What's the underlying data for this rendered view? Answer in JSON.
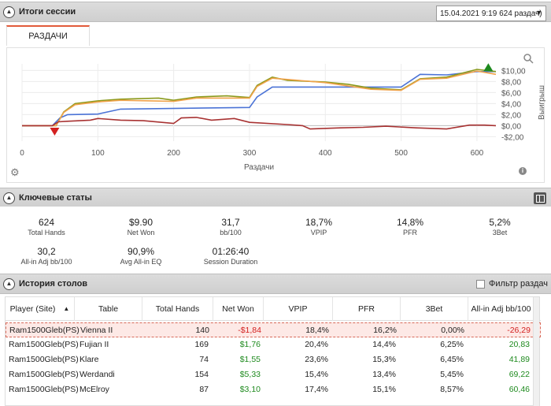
{
  "session": {
    "title": "Итоги сессии",
    "selector_value": "15.04.2021 9:19 624 раздач)",
    "tab_label": "РАЗДАЧИ"
  },
  "chart_data": {
    "type": "line",
    "xlabel": "Раздачи",
    "ylabel": "Выигрыш",
    "xlim": [
      0,
      625
    ],
    "ylim": [
      -2.8,
      11.2
    ],
    "x_ticks": [
      0,
      100,
      200,
      300,
      400,
      500,
      600
    ],
    "y_ticks": [
      -2,
      0,
      2,
      4,
      6,
      8,
      10
    ],
    "y_tick_labels": [
      "-$2,00",
      "$0,00",
      "$2,00",
      "$4,00",
      "$6,00",
      "$8,00",
      "$10,00"
    ],
    "grid": true,
    "markers": [
      {
        "type": "min",
        "x": 43,
        "y": -0.8,
        "color": "#d32020"
      },
      {
        "type": "max",
        "x": 615,
        "y": 10.3,
        "color": "#1e8a1e"
      }
    ],
    "series": [
      {
        "color": "#4b73d6",
        "points": [
          [
            0,
            0
          ],
          [
            40,
            0
          ],
          [
            50,
            1.4
          ],
          [
            60,
            2
          ],
          [
            100,
            2.1
          ],
          [
            130,
            3
          ],
          [
            300,
            3.3
          ],
          [
            310,
            5.2
          ],
          [
            330,
            7
          ],
          [
            500,
            7
          ],
          [
            525,
            9.3
          ],
          [
            560,
            9.2
          ],
          [
            600,
            9.8
          ],
          [
            625,
            9.8
          ]
        ]
      },
      {
        "color": "#8a9a1c",
        "points": [
          [
            0,
            0
          ],
          [
            45,
            0
          ],
          [
            55,
            2.5
          ],
          [
            70,
            4
          ],
          [
            100,
            4.5
          ],
          [
            130,
            4.8
          ],
          [
            180,
            5
          ],
          [
            200,
            4.6
          ],
          [
            230,
            5.2
          ],
          [
            270,
            5.4
          ],
          [
            300,
            5.1
          ],
          [
            310,
            7.3
          ],
          [
            330,
            8.8
          ],
          [
            350,
            8.2
          ],
          [
            400,
            7.9
          ],
          [
            430,
            7.5
          ],
          [
            460,
            6.8
          ],
          [
            500,
            6.5
          ],
          [
            525,
            8.5
          ],
          [
            560,
            8.8
          ],
          [
            600,
            10.2
          ],
          [
            625,
            9.8
          ]
        ]
      },
      {
        "color": "#f0a24a",
        "points": [
          [
            0,
            0
          ],
          [
            45,
            0
          ],
          [
            55,
            2.4
          ],
          [
            70,
            3.8
          ],
          [
            100,
            4.3
          ],
          [
            130,
            4.6
          ],
          [
            200,
            4.4
          ],
          [
            230,
            5
          ],
          [
            300,
            5
          ],
          [
            310,
            7.1
          ],
          [
            330,
            8.6
          ],
          [
            400,
            7.8
          ],
          [
            460,
            6.6
          ],
          [
            500,
            6.4
          ],
          [
            525,
            8.4
          ],
          [
            560,
            8.6
          ],
          [
            600,
            9.9
          ],
          [
            625,
            9.3
          ]
        ]
      },
      {
        "color": "#a83232",
        "points": [
          [
            0,
            0
          ],
          [
            40,
            0
          ],
          [
            48,
            0.7
          ],
          [
            60,
            0.8
          ],
          [
            90,
            1
          ],
          [
            100,
            1.3
          ],
          [
            130,
            1
          ],
          [
            160,
            0.9
          ],
          [
            200,
            0.4
          ],
          [
            210,
            1.4
          ],
          [
            230,
            1.5
          ],
          [
            250,
            1
          ],
          [
            280,
            1.3
          ],
          [
            300,
            0.6
          ],
          [
            350,
            0.2
          ],
          [
            370,
            0
          ],
          [
            380,
            -0.6
          ],
          [
            420,
            -0.4
          ],
          [
            450,
            -0.3
          ],
          [
            480,
            -0.1
          ],
          [
            520,
            -0.4
          ],
          [
            560,
            -0.6
          ],
          [
            590,
            0.1
          ],
          [
            610,
            0.1
          ],
          [
            625,
            0
          ]
        ]
      }
    ]
  },
  "key_stats": {
    "title": "Ключевые статы",
    "items": [
      {
        "value": "624",
        "label": "Total Hands"
      },
      {
        "value": "$9.90",
        "label": "Net Won"
      },
      {
        "value": "31,7",
        "label": "bb/100"
      },
      {
        "value": "18,7%",
        "label": "VPIP"
      },
      {
        "value": "14,8%",
        "label": "PFR"
      },
      {
        "value": "5,2%",
        "label": "3Bet"
      },
      {
        "value": "30,2",
        "label": "All-in Adj bb/100"
      },
      {
        "value": "90,9%",
        "label": "Avg All-in EQ"
      },
      {
        "value": "01:26:40",
        "label": "Session Duration"
      }
    ]
  },
  "tables_history": {
    "title": "История столов",
    "filter_label": "Фильтр раздач",
    "columns": [
      "Player (Site)",
      "Table",
      "Total Hands",
      "Net Won",
      "VPIP",
      "PFR",
      "3Bet",
      "All-in Adj bb/100"
    ],
    "sort_indicator": "▲",
    "rows": [
      {
        "player": "Ram1500Gleb(PS)",
        "table": "Vienna II",
        "hands": "140",
        "net": "-$1,84",
        "vpip": "18,4%",
        "pfr": "16,2%",
        "threebet": "0,00%",
        "allin": "-26,29",
        "selected": true
      },
      {
        "player": "Ram1500Gleb(PS)",
        "table": "Fujian II",
        "hands": "169",
        "net": "$1,76",
        "vpip": "20,4%",
        "pfr": "14,4%",
        "threebet": "6,25%",
        "allin": "20,83"
      },
      {
        "player": "Ram1500Gleb(PS)",
        "table": "Klare",
        "hands": "74",
        "net": "$1,55",
        "vpip": "23,6%",
        "pfr": "15,3%",
        "threebet": "6,45%",
        "allin": "41,89"
      },
      {
        "player": "Ram1500Gleb(PS)",
        "table": "Werdandi",
        "hands": "154",
        "net": "$5,33",
        "vpip": "15,4%",
        "pfr": "13,4%",
        "threebet": "5,45%",
        "allin": "69,22"
      },
      {
        "player": "Ram1500Gleb(PS)",
        "table": "McElroy",
        "hands": "87",
        "net": "$3,10",
        "vpip": "17,4%",
        "pfr": "15,1%",
        "threebet": "8,57%",
        "allin": "60,46"
      }
    ]
  }
}
